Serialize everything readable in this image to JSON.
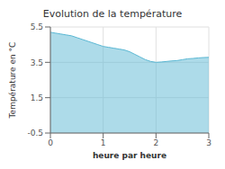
{
  "chart_data": {
    "type": "area",
    "title": "Evolution de la température",
    "xlabel": "heure par heure",
    "ylabel": "Température en °C",
    "x": [
      0,
      0.1,
      0.2,
      0.3,
      0.4,
      0.5,
      0.6,
      0.7,
      0.8,
      0.9,
      1.0,
      1.1,
      1.2,
      1.3,
      1.4,
      1.5,
      1.6,
      1.7,
      1.8,
      1.9,
      2.0,
      2.1,
      2.2,
      2.3,
      2.4,
      2.5,
      2.6,
      2.7,
      2.8,
      2.9,
      3.0
    ],
    "values": [
      5.2,
      5.15,
      5.1,
      5.05,
      5.0,
      4.9,
      4.8,
      4.7,
      4.6,
      4.5,
      4.4,
      4.35,
      4.3,
      4.25,
      4.2,
      4.1,
      3.95,
      3.8,
      3.65,
      3.55,
      3.5,
      3.52,
      3.55,
      3.58,
      3.6,
      3.65,
      3.7,
      3.72,
      3.75,
      3.77,
      3.78
    ],
    "color": "#5bb8d4",
    "xlim": [
      0,
      3
    ],
    "ylim": [
      -0.5,
      5.5
    ],
    "xticks": [
      0,
      1,
      2,
      3
    ],
    "yticks": [
      -0.5,
      1.5,
      3.5,
      5.5
    ],
    "grid": true
  }
}
